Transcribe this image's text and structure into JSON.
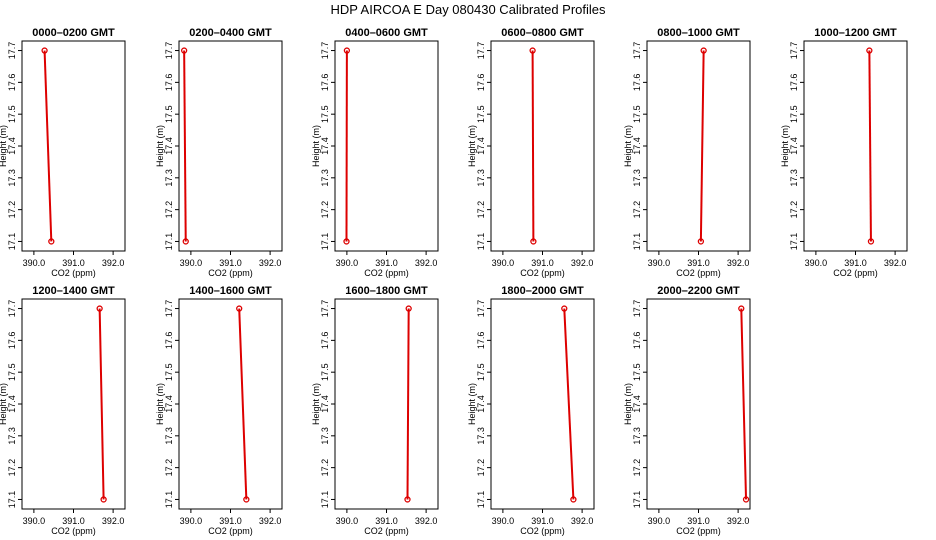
{
  "title": "HDP  AIRCOA E  Day 080430  Calibrated Profiles",
  "colors": {
    "profile": "#dd0000",
    "axis": "#000000"
  },
  "chart_data": [
    {
      "type": "line",
      "title": "0000–0200 GMT",
      "xlabel": "CO2 (ppm)",
      "ylabel": "Height (m)",
      "xlim": [
        389.7,
        392.3
      ],
      "ylim": [
        17.07,
        17.73
      ],
      "xticks": [
        "390.0",
        "391.0",
        "392.0"
      ],
      "yticks": [
        "17.1",
        "17.2",
        "17.3",
        "17.4",
        "17.5",
        "17.6",
        "17.7"
      ],
      "points": [
        {
          "x": 390.27,
          "y": 17.7
        },
        {
          "x": 390.44,
          "y": 17.1
        }
      ]
    },
    {
      "type": "line",
      "title": "0200–0400 GMT",
      "xlabel": "CO2 (ppm)",
      "ylabel": "Height (m)",
      "xlim": [
        389.7,
        392.3
      ],
      "ylim": [
        17.07,
        17.73
      ],
      "xticks": [
        "390.0",
        "391.0",
        "392.0"
      ],
      "yticks": [
        "17.1",
        "17.2",
        "17.3",
        "17.4",
        "17.5",
        "17.6",
        "17.7"
      ],
      "points": [
        {
          "x": 389.83,
          "y": 17.7
        },
        {
          "x": 389.87,
          "y": 17.1
        }
      ]
    },
    {
      "type": "line",
      "title": "0400–0600 GMT",
      "xlabel": "CO2 (ppm)",
      "ylabel": "Height (m)",
      "xlim": [
        389.7,
        392.3
      ],
      "ylim": [
        17.07,
        17.73
      ],
      "xticks": [
        "390.0",
        "391.0",
        "392.0"
      ],
      "yticks": [
        "17.1",
        "17.2",
        "17.3",
        "17.4",
        "17.5",
        "17.6",
        "17.7"
      ],
      "points": [
        {
          "x": 390.0,
          "y": 17.7
        },
        {
          "x": 389.99,
          "y": 17.1
        }
      ]
    },
    {
      "type": "line",
      "title": "0600–0800 GMT",
      "xlabel": "CO2 (ppm)",
      "ylabel": "Height (m)",
      "xlim": [
        389.7,
        392.3
      ],
      "ylim": [
        17.07,
        17.73
      ],
      "xticks": [
        "390.0",
        "391.0",
        "392.0"
      ],
      "yticks": [
        "17.1",
        "17.2",
        "17.3",
        "17.4",
        "17.5",
        "17.6",
        "17.7"
      ],
      "points": [
        {
          "x": 390.75,
          "y": 17.7
        },
        {
          "x": 390.77,
          "y": 17.1
        }
      ]
    },
    {
      "type": "line",
      "title": "0800–1000 GMT",
      "xlabel": "CO2 (ppm)",
      "ylabel": "Height (m)",
      "xlim": [
        389.7,
        392.3
      ],
      "ylim": [
        17.07,
        17.73
      ],
      "xticks": [
        "390.0",
        "391.0",
        "392.0"
      ],
      "yticks": [
        "17.1",
        "17.2",
        "17.3",
        "17.4",
        "17.5",
        "17.6",
        "17.7"
      ],
      "points": [
        {
          "x": 391.13,
          "y": 17.7
        },
        {
          "x": 391.06,
          "y": 17.1
        }
      ]
    },
    {
      "type": "line",
      "title": "1000–1200 GMT",
      "xlabel": "CO2 (ppm)",
      "ylabel": "Height (m)",
      "xlim": [
        389.7,
        392.3
      ],
      "ylim": [
        17.07,
        17.73
      ],
      "xticks": [
        "390.0",
        "391.0",
        "392.0"
      ],
      "yticks": [
        "17.1",
        "17.2",
        "17.3",
        "17.4",
        "17.5",
        "17.6",
        "17.7"
      ],
      "points": [
        {
          "x": 391.35,
          "y": 17.7
        },
        {
          "x": 391.39,
          "y": 17.1
        }
      ]
    },
    {
      "type": "line",
      "title": "1200–1400 GMT",
      "xlabel": "CO2 (ppm)",
      "ylabel": "Height (m)",
      "xlim": [
        389.7,
        392.3
      ],
      "ylim": [
        17.07,
        17.73
      ],
      "xticks": [
        "390.0",
        "391.0",
        "392.0"
      ],
      "yticks": [
        "17.1",
        "17.2",
        "17.3",
        "17.4",
        "17.5",
        "17.6",
        "17.7"
      ],
      "points": [
        {
          "x": 391.66,
          "y": 17.7
        },
        {
          "x": 391.76,
          "y": 17.1
        }
      ]
    },
    {
      "type": "line",
      "title": "1400–1600 GMT",
      "xlabel": "CO2 (ppm)",
      "ylabel": "Height (m)",
      "xlim": [
        389.7,
        392.3
      ],
      "ylim": [
        17.07,
        17.73
      ],
      "xticks": [
        "390.0",
        "391.0",
        "392.0"
      ],
      "yticks": [
        "17.1",
        "17.2",
        "17.3",
        "17.4",
        "17.5",
        "17.6",
        "17.7"
      ],
      "points": [
        {
          "x": 391.22,
          "y": 17.7
        },
        {
          "x": 391.4,
          "y": 17.1
        }
      ]
    },
    {
      "type": "line",
      "title": "1600–1800 GMT",
      "xlabel": "CO2 (ppm)",
      "ylabel": "Height (m)",
      "xlim": [
        389.7,
        392.3
      ],
      "ylim": [
        17.07,
        17.73
      ],
      "xticks": [
        "390.0",
        "391.0",
        "392.0"
      ],
      "yticks": [
        "17.1",
        "17.2",
        "17.3",
        "17.4",
        "17.5",
        "17.6",
        "17.7"
      ],
      "points": [
        {
          "x": 391.56,
          "y": 17.7
        },
        {
          "x": 391.53,
          "y": 17.1
        }
      ]
    },
    {
      "type": "line",
      "title": "1800–2000 GMT",
      "xlabel": "CO2 (ppm)",
      "ylabel": "Height (m)",
      "xlim": [
        389.7,
        392.3
      ],
      "ylim": [
        17.07,
        17.73
      ],
      "xticks": [
        "390.0",
        "391.0",
        "392.0"
      ],
      "yticks": [
        "17.1",
        "17.2",
        "17.3",
        "17.4",
        "17.5",
        "17.6",
        "17.7"
      ],
      "points": [
        {
          "x": 391.55,
          "y": 17.7
        },
        {
          "x": 391.78,
          "y": 17.1
        }
      ]
    },
    {
      "type": "line",
      "title": "2000–2200 GMT",
      "xlabel": "CO2 (ppm)",
      "ylabel": "Height (m)",
      "xlim": [
        389.7,
        392.3
      ],
      "ylim": [
        17.07,
        17.73
      ],
      "xticks": [
        "390.0",
        "391.0",
        "392.0"
      ],
      "yticks": [
        "17.1",
        "17.2",
        "17.3",
        "17.4",
        "17.5",
        "17.6",
        "17.7"
      ],
      "points": [
        {
          "x": 392.08,
          "y": 17.7
        },
        {
          "x": 392.2,
          "y": 17.1
        }
      ]
    }
  ]
}
